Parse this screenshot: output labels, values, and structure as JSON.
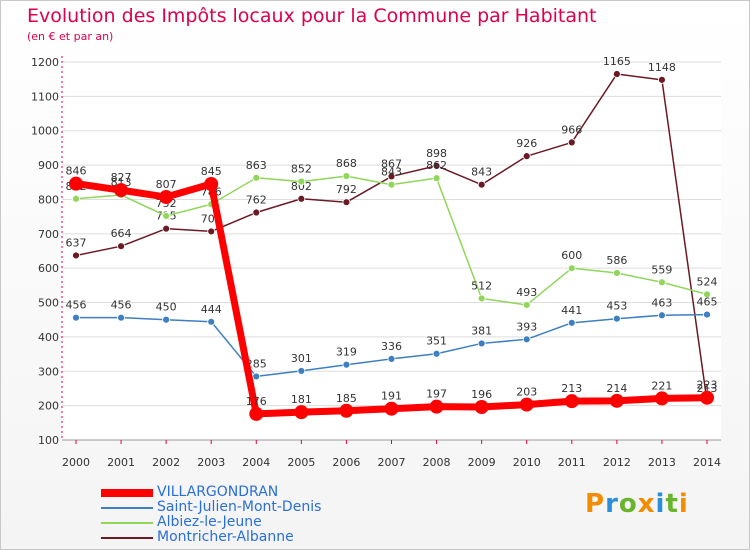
{
  "header": {
    "title": "Evolution des Impôts locaux pour la Commune par Habitant",
    "subtitle": "(en € et par an)"
  },
  "logo": {
    "text": "Proxiti",
    "colors": [
      "#f28c00",
      "#2a8fd8",
      "#6ab42d",
      "#f28c00",
      "#2a8fd8",
      "#6ab42d",
      "#f28c00"
    ]
  },
  "chart_data": {
    "type": "line",
    "title": "Evolution des Impôts locaux pour la Commune par Habitant",
    "subtitle": "(en € et par an)",
    "x": [
      "2000",
      "2001",
      "2002",
      "2003",
      "2004",
      "2005",
      "2006",
      "2007",
      "2008",
      "2009",
      "2010",
      "2011",
      "2012",
      "2013",
      "2014"
    ],
    "y_ticks": [
      100,
      200,
      300,
      400,
      500,
      600,
      700,
      800,
      900,
      1000,
      1100,
      1200
    ],
    "ylim": [
      100,
      1200
    ],
    "grid": "horizontal",
    "legend_position": "bottom-left",
    "series": [
      {
        "name": "Montricher-Albanne",
        "color": "#6b1a24",
        "values": [
          637,
          664,
          715,
          707,
          762,
          802,
          792,
          867,
          898,
          843,
          926,
          966,
          1165,
          1148,
          213
        ]
      },
      {
        "name": "Albiez-le-Jeune",
        "color": "#8fd65a",
        "values": [
          802,
          813,
          752,
          786,
          863,
          852,
          868,
          843,
          862,
          512,
          493,
          600,
          586,
          559,
          524
        ]
      },
      {
        "name": "Saint-Julien-Mont-Denis",
        "color": "#3d7fc0",
        "values": [
          456,
          456,
          450,
          444,
          285,
          301,
          319,
          336,
          351,
          381,
          393,
          441,
          453,
          463,
          465
        ]
      },
      {
        "name": "VILLARGONDRAN",
        "color": "#ff0000",
        "values": [
          846,
          827,
          807,
          845,
          176,
          181,
          185,
          191,
          197,
          196,
          203,
          213,
          214,
          221,
          223
        ]
      }
    ],
    "legend": [
      "VILLARGONDRAN",
      "Saint-Julien-Mont-Denis",
      "Albiez-le-Jeune",
      "Montricher-Albanne"
    ]
  }
}
